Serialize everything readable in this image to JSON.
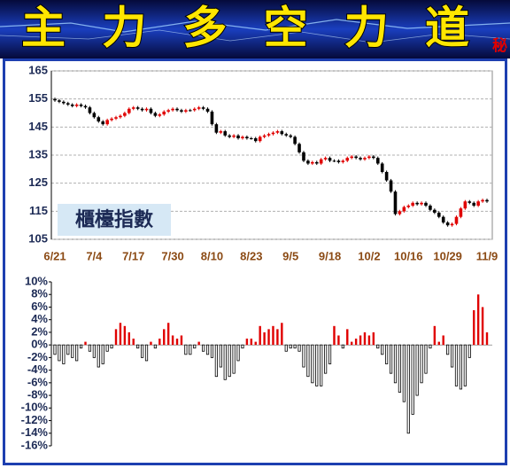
{
  "header": {
    "title": "主力多空力道",
    "badge": "秘"
  },
  "chart_data": [
    {
      "type": "candlestick",
      "annotation": "櫃檯指數",
      "categories": [
        "6/21",
        null,
        null,
        null,
        null,
        null,
        null,
        null,
        null,
        "7/4",
        null,
        null,
        null,
        null,
        null,
        null,
        null,
        null,
        "7/17",
        null,
        null,
        null,
        null,
        null,
        null,
        null,
        null,
        "7/30",
        null,
        null,
        null,
        null,
        null,
        null,
        null,
        null,
        "8/10",
        null,
        null,
        null,
        null,
        null,
        null,
        null,
        null,
        "8/23",
        null,
        null,
        null,
        null,
        null,
        null,
        null,
        null,
        "9/5",
        null,
        null,
        null,
        null,
        null,
        null,
        null,
        null,
        "9/18",
        null,
        null,
        null,
        null,
        null,
        null,
        null,
        null,
        "10/2",
        null,
        null,
        null,
        null,
        null,
        null,
        null,
        null,
        "10/16",
        null,
        null,
        null,
        null,
        null,
        null,
        null,
        null,
        "10/29",
        null,
        null,
        null,
        null,
        null,
        null,
        null,
        null,
        "11/9"
      ],
      "open": [
        155,
        154.5,
        154,
        153.5,
        153,
        152.5,
        153,
        152.5,
        152,
        150,
        148.5,
        147,
        146,
        147.5,
        148,
        148.5,
        149,
        150,
        151.5,
        152,
        151.5,
        151,
        151.5,
        150,
        149,
        149.5,
        150.5,
        151,
        151.5,
        151,
        150.5,
        151,
        151,
        151.5,
        152,
        151.5,
        150.5,
        146,
        143,
        143.5,
        142,
        141.5,
        142,
        141,
        141.5,
        141,
        141,
        140,
        141.5,
        142,
        142.5,
        143,
        143.5,
        142.5,
        142,
        141.5,
        139,
        136,
        133,
        132,
        132.5,
        132,
        133.5,
        134,
        133,
        133,
        132.5,
        133,
        134,
        134.5,
        134,
        133.5,
        134,
        134.5,
        134,
        132,
        129,
        126,
        122,
        114,
        115,
        116.5,
        117,
        118,
        117.5,
        118,
        117,
        115.5,
        114.5,
        113,
        111,
        110,
        110.5,
        113,
        116,
        118.5,
        118,
        117,
        118.5,
        119
      ],
      "high": [
        155.5,
        155,
        154.5,
        154,
        153.5,
        153.5,
        153.5,
        153,
        152.5,
        150.5,
        149,
        147.5,
        148,
        148.5,
        149,
        149.5,
        150.5,
        152,
        152.5,
        152.5,
        152,
        152,
        152,
        150.5,
        150,
        151,
        151.5,
        152,
        152,
        151.5,
        151.5,
        151.5,
        152,
        152.5,
        152.5,
        152,
        151,
        146.5,
        144,
        144,
        142.5,
        142.5,
        142.5,
        142,
        142,
        141.5,
        141.5,
        142,
        142.5,
        143,
        143.5,
        144,
        144,
        143,
        142.5,
        142,
        139.5,
        136.5,
        133.5,
        133,
        133,
        134,
        134.5,
        134.5,
        133.5,
        133.5,
        133.5,
        134.5,
        135,
        135,
        134.5,
        134.5,
        135,
        135,
        134.5,
        132.5,
        129.5,
        126.5,
        122.5,
        115.5,
        117,
        117.5,
        118.5,
        118.5,
        118.5,
        118.5,
        117.5,
        116,
        115,
        113.5,
        111.5,
        111,
        113.5,
        116.5,
        119,
        119,
        118.5,
        119,
        119.5,
        119.5
      ],
      "low": [
        154,
        153.5,
        153,
        152.5,
        152,
        152,
        152,
        151.5,
        149.5,
        148,
        146.5,
        145.5,
        145.5,
        147,
        147.5,
        148,
        148.5,
        149.5,
        151,
        151,
        150.5,
        150.5,
        149.5,
        148.5,
        148.5,
        149,
        150,
        150.5,
        150.5,
        150,
        150,
        150.5,
        150.5,
        151,
        151,
        150,
        145.5,
        142.5,
        142.5,
        141.5,
        141,
        141,
        140.5,
        140.5,
        140.5,
        140.5,
        139.5,
        139.5,
        141,
        141.5,
        142,
        142.5,
        142,
        141.5,
        141,
        138.5,
        135.5,
        132.5,
        131.5,
        131.5,
        131.5,
        131.5,
        133,
        132.5,
        132.5,
        132,
        132,
        132.5,
        133.5,
        133.5,
        133,
        133,
        133.5,
        133.5,
        131.5,
        128.5,
        125.5,
        121.5,
        113.5,
        113.5,
        114.5,
        116,
        116.5,
        117,
        117,
        116.5,
        115,
        114,
        112.5,
        110.5,
        109.5,
        109.5,
        110,
        112.5,
        115.5,
        117.5,
        116.5,
        116.5,
        118,
        118
      ],
      "close": [
        154.5,
        154,
        153.5,
        153,
        152.5,
        153,
        152.5,
        152,
        150,
        148.5,
        147,
        146,
        147.5,
        148,
        148.5,
        149,
        150,
        151.5,
        152,
        151.5,
        151,
        151.5,
        150,
        149,
        149.5,
        150.5,
        151,
        151.5,
        151,
        150.5,
        151,
        151,
        151.5,
        152,
        151.5,
        150.5,
        146,
        143,
        143.5,
        142,
        141.5,
        142,
        141,
        141.5,
        141,
        141,
        140,
        141.5,
        142,
        142.5,
        143,
        143.5,
        142.5,
        142,
        141.5,
        139,
        136,
        133,
        132,
        132.5,
        132,
        133.5,
        134,
        133,
        133,
        132.5,
        133,
        134,
        134.5,
        134,
        133.5,
        134,
        134.5,
        134,
        132,
        129,
        126,
        122,
        114,
        115,
        116.5,
        117,
        118,
        117.5,
        118,
        117,
        115.5,
        114.5,
        113,
        111,
        110,
        110.5,
        113,
        116,
        118.5,
        118,
        117,
        118.5,
        119,
        118.5
      ],
      "up_color": "#e00000",
      "down_color": "#000000",
      "ylim": [
        105,
        165
      ],
      "yticks": [
        105,
        115,
        125,
        135,
        145,
        155,
        165
      ],
      "grid": true
    },
    {
      "type": "bar",
      "values": [
        -1.5,
        -2.5,
        -3,
        -1.5,
        -2,
        -2.5,
        -0.5,
        0.5,
        -1,
        -2,
        -3.5,
        -3,
        -1,
        -0.5,
        2.5,
        3.5,
        3,
        2,
        1,
        -0.5,
        -2,
        -2.5,
        0.5,
        -0.5,
        1,
        2.5,
        3.5,
        1.5,
        1,
        1.5,
        -1.5,
        -1.5,
        -0.5,
        0.5,
        -1,
        -1.5,
        -2,
        -5,
        -3.5,
        -5.5,
        -5,
        -4.5,
        -2.5,
        -0.5,
        1,
        1,
        0.5,
        3,
        2,
        2.5,
        3,
        2.5,
        3.5,
        -1,
        -0.5,
        -0.5,
        -1,
        -3.5,
        -5,
        -6,
        -6.5,
        -6.5,
        -4.5,
        -3,
        3,
        1.5,
        -0.5,
        2.5,
        0.5,
        1,
        1.5,
        2,
        1.5,
        2,
        -0.5,
        -1.5,
        -3,
        -4.5,
        -6,
        -7.5,
        -9,
        -14,
        -11,
        -8,
        -6,
        -4.5,
        -0.5,
        3,
        0.5,
        1.5,
        -1.5,
        -3.5,
        -6.5,
        -7,
        -6.5,
        -2,
        5.5,
        8,
        6,
        2
      ],
      "up_color": "#e00000",
      "down_color": "#000000",
      "ylim": [
        -16,
        10
      ],
      "yticks": [
        {
          "value": -16,
          "label": "-16%"
        },
        {
          "value": -14,
          "label": "-14%"
        },
        {
          "value": -12,
          "label": "-12%"
        },
        {
          "value": -10,
          "label": "-10%"
        },
        {
          "value": -8,
          "label": "-8%"
        },
        {
          "value": -6,
          "label": "-6%"
        },
        {
          "value": -4,
          "label": "-4%"
        },
        {
          "value": -2,
          "label": "-2%"
        },
        {
          "value": 0,
          "label": "0%"
        },
        {
          "value": 2,
          "label": "2%"
        },
        {
          "value": 4,
          "label": "4%"
        },
        {
          "value": 6,
          "label": "6%"
        },
        {
          "value": 8,
          "label": "8%"
        },
        {
          "value": 10,
          "label": "10%"
        }
      ],
      "grid": false
    }
  ]
}
